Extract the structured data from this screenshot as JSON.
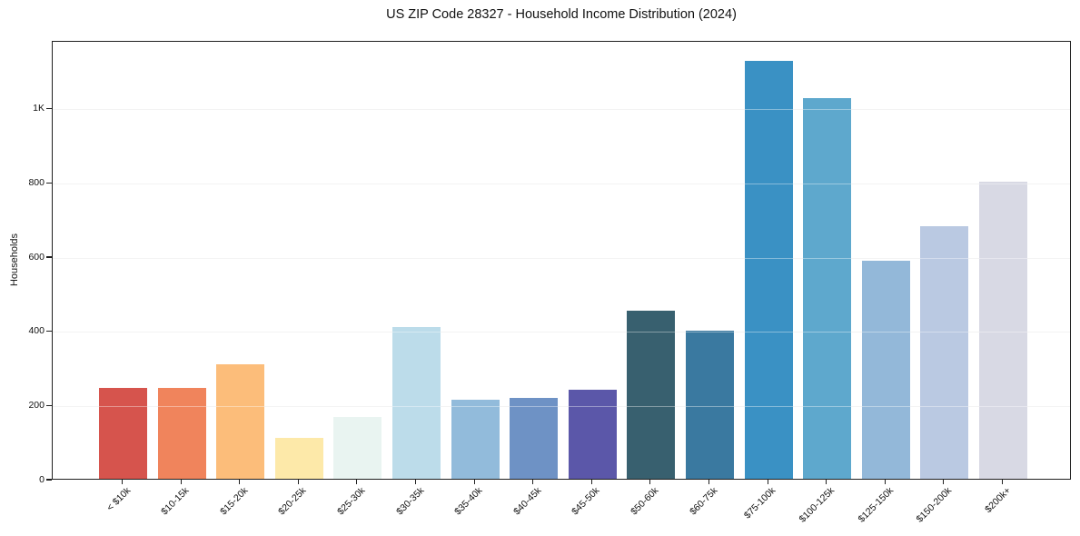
{
  "chart_data": {
    "type": "bar",
    "title": "US ZIP Code 28327 - Household Income Distribution (2024)",
    "xlabel": "",
    "ylabel": "Households",
    "categories": [
      "< $10k",
      "$10-15k",
      "$15-20k",
      "$20-25k",
      "$25-30k",
      "$30-35k",
      "$35-40k",
      "$40-45k",
      "$45-50k",
      "$50-60k",
      "$60-75k",
      "$75-100k",
      "$100-125k",
      "$125-150k",
      "$150-200k",
      "$200k+"
    ],
    "values": [
      245,
      245,
      308,
      110,
      167,
      410,
      213,
      218,
      241,
      453,
      400,
      1128,
      1026,
      588,
      680,
      800
    ],
    "bar_colors": [
      "#d6544d",
      "#f0845c",
      "#fcbd7a",
      "#fde9a9",
      "#e9f4f1",
      "#bcdcea",
      "#92bbdb",
      "#6e92c5",
      "#5b57a9",
      "#38606f",
      "#3a79a0",
      "#3a91c4",
      "#5ea8cd",
      "#93b8d9",
      "#bac9e2",
      "#d8d9e4"
    ],
    "ylim": [
      0,
      1183
    ],
    "yticks": [
      {
        "value": 0,
        "label": "0"
      },
      {
        "value": 200,
        "label": "200"
      },
      {
        "value": 400,
        "label": "400"
      },
      {
        "value": 600,
        "label": "600"
      },
      {
        "value": 800,
        "label": "800"
      },
      {
        "value": 1000,
        "label": "1K"
      }
    ],
    "grid": "horizontal",
    "legend": "none",
    "style": {
      "axis_color": "#1f1f1f",
      "grid_under_color": "#ececec",
      "grid_over_color": "rgba(255,255,255,0.38)",
      "background": "#ffffff"
    }
  }
}
